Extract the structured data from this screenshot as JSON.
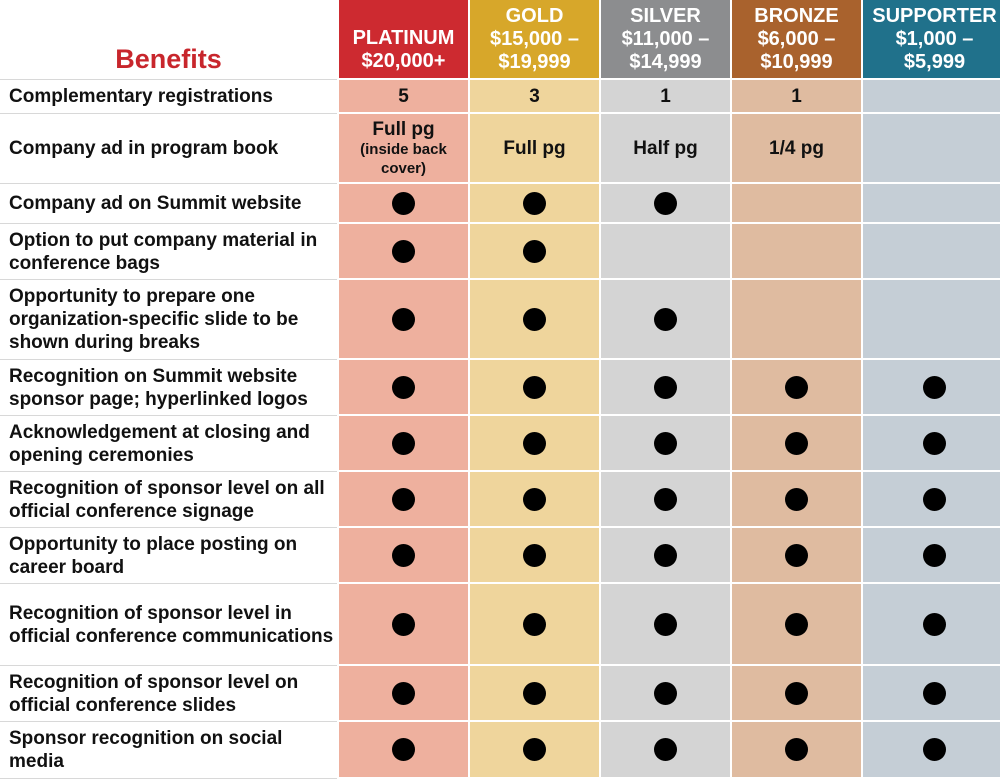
{
  "header": {
    "benefits_label": "Benefits",
    "tiers": [
      {
        "name": "PLATINUM",
        "range": "$20,000+",
        "color": "#cd2a30"
      },
      {
        "name": "GOLD",
        "range_line1": "$15,000 –",
        "range_line2": "$19,999",
        "color": "#d7a72a"
      },
      {
        "name": "SILVER",
        "range_line1": "$11,000 –",
        "range_line2": "$14,999",
        "color": "#8c8d8f"
      },
      {
        "name": "BRONZE",
        "range_line1": "$6,000 –",
        "range_line2": "$10,999",
        "color": "#a9622d"
      },
      {
        "name": "SUPPORTER",
        "range_line1": "$1,000 –",
        "range_line2": "$5,999",
        "color": "#20718b"
      }
    ]
  },
  "rows": [
    {
      "benefit": "Complementary registrations",
      "values": [
        "5",
        "3",
        "1",
        "1",
        ""
      ]
    },
    {
      "benefit": "Company ad in program book",
      "values": [
        "Full pg",
        "Full pg",
        "Half pg",
        "1/4 pg",
        ""
      ],
      "platinum_note": "(inside back cover)"
    },
    {
      "benefit": "Company ad on Summit website",
      "marks": [
        true,
        true,
        true,
        false,
        false
      ]
    },
    {
      "benefit": "Option to put company material in conference bags",
      "marks": [
        true,
        true,
        false,
        false,
        false
      ]
    },
    {
      "benefit": "Opportunity to prepare one organization-specific slide to be shown during breaks",
      "marks": [
        true,
        true,
        true,
        false,
        false
      ]
    },
    {
      "benefit": "Recognition on Summit website sponsor page; hyperlinked logos",
      "marks": [
        true,
        true,
        true,
        true,
        true
      ]
    },
    {
      "benefit": "Acknowledgement at closing and opening ceremonies",
      "marks": [
        true,
        true,
        true,
        true,
        true
      ]
    },
    {
      "benefit": "Recognition of sponsor level on all official conference signage",
      "marks": [
        true,
        true,
        true,
        true,
        true
      ]
    },
    {
      "benefit": "Opportunity to place posting on career board",
      "marks": [
        true,
        true,
        true,
        true,
        true
      ]
    },
    {
      "benefit": "Recognition of sponsor level in official conference communications",
      "marks": [
        true,
        true,
        true,
        true,
        true
      ]
    },
    {
      "benefit": "Recognition of sponsor level on official conference slides",
      "marks": [
        true,
        true,
        true,
        true,
        true
      ]
    },
    {
      "benefit": "Sponsor recognition on social media",
      "marks": [
        true,
        true,
        true,
        true,
        true
      ]
    }
  ],
  "colors": {
    "benefits_title": "#c8262c",
    "platinum_column": "#eeb09e",
    "gold_column": "#efd59c",
    "silver_column": "#d4d4d4",
    "bronze_column": "#dfbba0",
    "supporter_column": "#c5ced6"
  }
}
